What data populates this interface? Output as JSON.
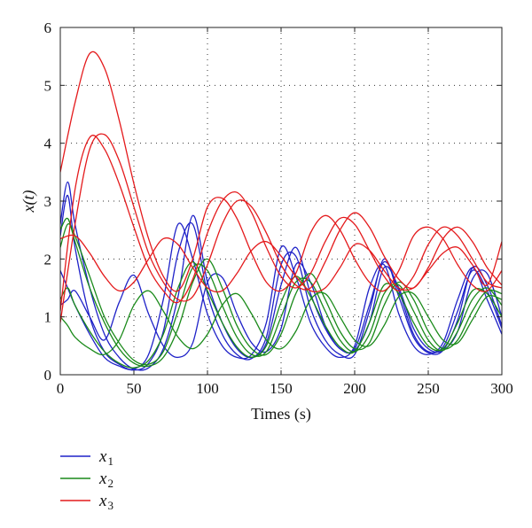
{
  "chart_data": {
    "type": "line",
    "title": "",
    "xlabel": "Times (s)",
    "ylabel": "x(t)",
    "xlim": [
      0,
      300
    ],
    "ylim": [
      0,
      6
    ],
    "xticks": [
      0,
      50,
      100,
      150,
      200,
      250,
      300
    ],
    "yticks": [
      0,
      1,
      2,
      3,
      4,
      5,
      6
    ],
    "grid": true,
    "legend_position": "bottom-left, below plot",
    "legend": [
      {
        "label": "x",
        "subscript": "1",
        "color": "#1f22c8"
      },
      {
        "label": "x",
        "subscript": "2",
        "color": "#1a8a1a"
      },
      {
        "label": "x",
        "subscript": "3",
        "color": "#e41a1c"
      }
    ],
    "series": [
      {
        "name": "x1",
        "color": "#1f22c8",
        "x": [
          0,
          5,
          10,
          20,
          30,
          40,
          50,
          60,
          70,
          80,
          90,
          100,
          110,
          120,
          130,
          140,
          150,
          160,
          170,
          180,
          190,
          200,
          210,
          220,
          230,
          240,
          250,
          260,
          270,
          280,
          290,
          300
        ],
        "y": [
          2.6,
          3.33,
          2.6,
          1.5,
          0.7,
          0.3,
          0.1,
          0.12,
          0.45,
          1.35,
          2.75,
          1.6,
          0.9,
          0.45,
          0.3,
          0.55,
          1.55,
          2.2,
          1.4,
          0.8,
          0.45,
          0.42,
          0.9,
          1.85,
          1.5,
          0.8,
          0.45,
          0.42,
          0.75,
          1.65,
          1.75,
          1.0
        ]
      },
      {
        "name": "x1",
        "color": "#1f22c8",
        "x": [
          0,
          5,
          10,
          20,
          30,
          40,
          50,
          60,
          70,
          80,
          90,
          100,
          110,
          120,
          130,
          140,
          150,
          160,
          170,
          180,
          190,
          200,
          210,
          220,
          230,
          240,
          250,
          260,
          270,
          280,
          290,
          300
        ],
        "y": [
          2.4,
          3.1,
          2.2,
          1.0,
          0.4,
          0.18,
          0.08,
          0.2,
          0.75,
          2.1,
          2.6,
          1.4,
          0.7,
          0.35,
          0.28,
          0.65,
          1.9,
          2.05,
          1.15,
          0.6,
          0.35,
          0.35,
          1.1,
          2.0,
          1.35,
          0.65,
          0.38,
          0.42,
          0.95,
          1.85,
          1.55,
          0.85
        ]
      },
      {
        "name": "x1",
        "color": "#1f22c8",
        "x": [
          0,
          5,
          10,
          20,
          30,
          40,
          50,
          60,
          70,
          80,
          90,
          100,
          110,
          120,
          130,
          140,
          150,
          160,
          170,
          180,
          190,
          200,
          210,
          220,
          230,
          240,
          250,
          260,
          270,
          280,
          290,
          300
        ],
        "y": [
          1.8,
          1.5,
          1.2,
          0.7,
          0.3,
          0.15,
          0.1,
          0.35,
          1.3,
          2.6,
          2.0,
          1.05,
          0.5,
          0.3,
          0.35,
          0.9,
          2.2,
          1.7,
          0.9,
          0.48,
          0.3,
          0.5,
          1.5,
          1.9,
          1.05,
          0.5,
          0.35,
          0.55,
          1.3,
          1.85,
          1.3,
          0.7
        ]
      },
      {
        "name": "x1",
        "color": "#1f22c8",
        "x": [
          0,
          5,
          10,
          20,
          30,
          40,
          50,
          60,
          70,
          80,
          90,
          100,
          110,
          120,
          130,
          140,
          150,
          160,
          170,
          180,
          190,
          200,
          210,
          220,
          230,
          240,
          250,
          260,
          270,
          280,
          290,
          300
        ],
        "y": [
          1.2,
          1.3,
          1.45,
          1.0,
          0.6,
          1.25,
          1.72,
          1.05,
          0.5,
          0.3,
          0.55,
          1.6,
          1.68,
          1.05,
          0.55,
          0.4,
          0.8,
          1.9,
          1.6,
          0.85,
          0.45,
          0.45,
          1.2,
          1.95,
          1.45,
          0.7,
          0.4,
          0.48,
          1.1,
          1.8,
          1.45,
          0.8
        ]
      },
      {
        "name": "x2",
        "color": "#1a8a1a",
        "x": [
          0,
          5,
          10,
          20,
          30,
          40,
          50,
          60,
          70,
          80,
          90,
          100,
          110,
          120,
          130,
          140,
          150,
          160,
          170,
          180,
          190,
          200,
          210,
          220,
          230,
          240,
          250,
          260,
          270,
          280,
          290,
          300
        ],
        "y": [
          2.5,
          2.7,
          2.3,
          1.5,
          0.9,
          0.45,
          0.2,
          0.15,
          0.3,
          0.8,
          1.6,
          2.0,
          1.5,
          0.85,
          0.45,
          0.35,
          0.7,
          1.4,
          1.75,
          1.3,
          0.75,
          0.45,
          0.55,
          1.2,
          1.6,
          1.3,
          0.75,
          0.45,
          0.6,
          1.1,
          1.45,
          1.4
        ]
      },
      {
        "name": "x2",
        "color": "#1a8a1a",
        "x": [
          0,
          5,
          10,
          20,
          30,
          40,
          50,
          60,
          70,
          80,
          90,
          100,
          110,
          120,
          130,
          140,
          150,
          160,
          170,
          180,
          190,
          200,
          210,
          220,
          230,
          240,
          250,
          260,
          270,
          280,
          290,
          300
        ],
        "y": [
          2.2,
          2.6,
          2.4,
          1.7,
          1.0,
          0.55,
          0.25,
          0.18,
          0.4,
          1.1,
          1.85,
          1.8,
          1.2,
          0.65,
          0.35,
          0.4,
          1.0,
          1.6,
          1.6,
          1.1,
          0.6,
          0.4,
          0.7,
          1.4,
          1.55,
          1.1,
          0.6,
          0.42,
          0.75,
          1.3,
          1.5,
          1.2
        ]
      },
      {
        "name": "x2",
        "color": "#1a8a1a",
        "x": [
          0,
          5,
          10,
          20,
          30,
          40,
          50,
          60,
          70,
          80,
          90,
          100,
          110,
          120,
          130,
          140,
          150,
          160,
          170,
          180,
          190,
          200,
          210,
          220,
          230,
          240,
          250,
          260,
          270,
          280,
          290,
          300
        ],
        "y": [
          1.3,
          1.5,
          1.2,
          0.75,
          0.4,
          0.2,
          0.12,
          0.25,
          0.7,
          1.5,
          1.95,
          1.45,
          0.9,
          0.48,
          0.3,
          0.5,
          1.25,
          1.7,
          1.35,
          0.85,
          0.48,
          0.4,
          0.9,
          1.55,
          1.4,
          0.9,
          0.5,
          0.45,
          0.9,
          1.45,
          1.4,
          1.0
        ]
      },
      {
        "name": "x2",
        "color": "#1a8a1a",
        "x": [
          0,
          5,
          10,
          20,
          30,
          40,
          50,
          60,
          70,
          80,
          90,
          100,
          110,
          120,
          130,
          140,
          150,
          160,
          170,
          180,
          190,
          200,
          210,
          220,
          230,
          240,
          250,
          260,
          270,
          280,
          290,
          300
        ],
        "y": [
          1.0,
          0.85,
          0.65,
          0.45,
          0.35,
          0.6,
          1.2,
          1.45,
          1.1,
          0.65,
          0.45,
          0.7,
          1.2,
          1.4,
          1.05,
          0.6,
          0.45,
          0.75,
          1.3,
          1.4,
          1.0,
          0.6,
          0.5,
          0.85,
          1.35,
          1.4,
          1.0,
          0.6,
          0.55,
          0.95,
          1.35,
          1.3
        ]
      },
      {
        "name": "x3",
        "color": "#e41a1c",
        "x": [
          0,
          10,
          20,
          30,
          40,
          50,
          60,
          70,
          80,
          90,
          100,
          110,
          120,
          130,
          140,
          150,
          160,
          170,
          180,
          190,
          200,
          210,
          220,
          230,
          240,
          250,
          260,
          270,
          280,
          290,
          300
        ],
        "y": [
          3.5,
          4.7,
          5.55,
          5.3,
          4.4,
          3.3,
          2.35,
          1.7,
          1.45,
          2.0,
          2.9,
          3.05,
          2.7,
          2.1,
          1.6,
          1.45,
          1.75,
          2.45,
          2.75,
          2.5,
          2.0,
          1.6,
          1.45,
          1.8,
          2.4,
          2.55,
          2.35,
          1.9,
          1.55,
          1.45,
          1.8
        ]
      },
      {
        "name": "x3",
        "color": "#e41a1c",
        "x": [
          0,
          10,
          20,
          30,
          40,
          50,
          60,
          70,
          80,
          90,
          100,
          110,
          120,
          130,
          140,
          150,
          160,
          170,
          180,
          190,
          200,
          210,
          220,
          230,
          240,
          250,
          260,
          270,
          280,
          290,
          300
        ],
        "y": [
          1.1,
          3.2,
          4.1,
          3.9,
          3.3,
          2.55,
          1.85,
          1.45,
          1.25,
          1.65,
          2.45,
          3.0,
          3.15,
          2.8,
          2.2,
          1.7,
          1.5,
          1.75,
          2.3,
          2.7,
          2.6,
          2.15,
          1.7,
          1.45,
          1.7,
          2.25,
          2.55,
          2.4,
          2.0,
          1.6,
          1.5
        ]
      },
      {
        "name": "x3",
        "color": "#e41a1c",
        "x": [
          0,
          10,
          20,
          30,
          40,
          50,
          60,
          70,
          80,
          90,
          100,
          110,
          120,
          130,
          140,
          150,
          160,
          170,
          180,
          190,
          200,
          210,
          220,
          230,
          240,
          250,
          260,
          270,
          280,
          290,
          300
        ],
        "y": [
          0.9,
          2.6,
          3.9,
          4.15,
          3.7,
          2.9,
          2.1,
          1.6,
          1.3,
          1.35,
          1.9,
          2.6,
          3.0,
          2.9,
          2.45,
          1.9,
          1.55,
          1.5,
          1.95,
          2.5,
          2.8,
          2.55,
          2.05,
          1.65,
          1.5,
          1.85,
          2.35,
          2.55,
          2.3,
          1.85,
          1.55
        ]
      },
      {
        "name": "x3",
        "color": "#e41a1c",
        "x": [
          0,
          10,
          20,
          30,
          40,
          50,
          60,
          70,
          80,
          90,
          100,
          110,
          120,
          130,
          140,
          150,
          160,
          170,
          180,
          190,
          200,
          210,
          220,
          230,
          240,
          250,
          260,
          270,
          280,
          290,
          300
        ],
        "y": [
          2.35,
          2.4,
          2.1,
          1.7,
          1.45,
          1.6,
          2.0,
          2.35,
          2.25,
          1.85,
          1.5,
          1.45,
          1.75,
          2.15,
          2.3,
          2.05,
          1.7,
          1.45,
          1.5,
          1.85,
          2.25,
          2.15,
          1.8,
          1.5,
          1.5,
          1.8,
          2.1,
          2.2,
          1.9,
          1.55,
          2.3
        ]
      }
    ]
  }
}
